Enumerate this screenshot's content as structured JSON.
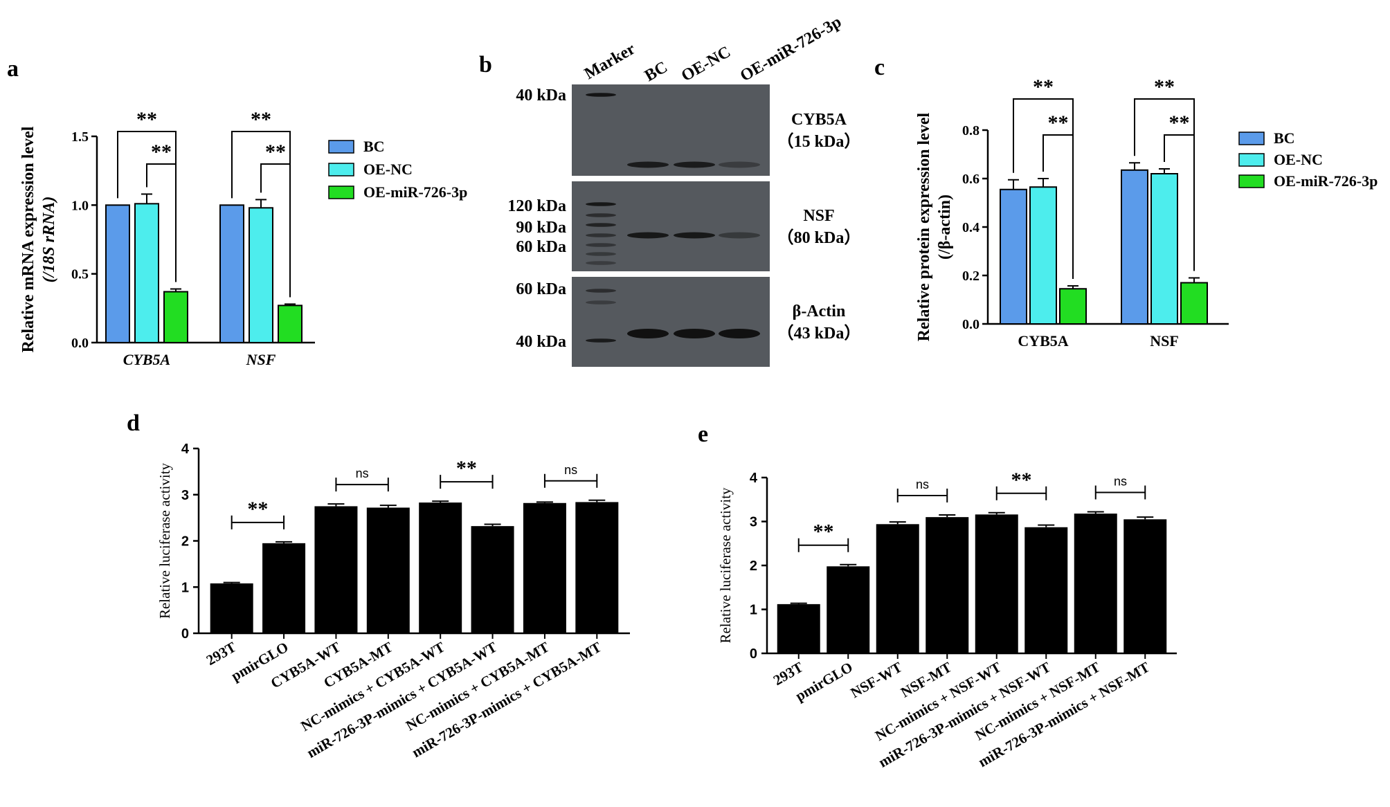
{
  "colors": {
    "bc": "#5B9BEA",
    "oenc": "#4DEDED",
    "oemir": "#22DD22",
    "black": "#000000",
    "blot_bg": "#55595e",
    "blot_band": "#111111"
  },
  "panel_letters": [
    "a",
    "b",
    "c",
    "d",
    "e"
  ],
  "legend": {
    "labels": [
      "BC",
      "OE-NC",
      "OE-miR-726-3p"
    ]
  },
  "blot": {
    "lane_labels": [
      "Marker",
      "BC",
      "OE-NC",
      "OE-miR-726-3p"
    ],
    "strips": [
      {
        "protein": "CYB5A",
        "size": "（15 kDa）",
        "markers": [
          "40 kDa"
        ]
      },
      {
        "protein": "NSF",
        "size": "（80 kDa）",
        "markers": [
          "120 kDa",
          "90 kDa",
          "60 kDa"
        ]
      },
      {
        "protein": "β-Actin",
        "size": "（43 kDa）",
        "markers": [
          "60 kDa",
          "40 kDa"
        ]
      }
    ],
    "band_intensity": [
      [
        0.85,
        0.85,
        0.4
      ],
      [
        0.9,
        0.9,
        0.45
      ],
      [
        1.0,
        1.0,
        1.0
      ]
    ]
  },
  "chart_data": [
    {
      "panel": "a",
      "type": "bar",
      "categories": [
        "CYB5A",
        "NSF"
      ],
      "series": [
        {
          "name": "BC",
          "values": [
            1.0,
            1.0
          ],
          "errors": [
            0,
            0
          ]
        },
        {
          "name": "OE-NC",
          "values": [
            1.01,
            0.98
          ],
          "errors": [
            0.07,
            0.06
          ]
        },
        {
          "name": "OE-miR-726-3p",
          "values": [
            0.37,
            0.27
          ],
          "errors": [
            0.02,
            0.01
          ]
        }
      ],
      "ylabel": "Relative mRNA expression level",
      "ylabel2": "(/18S rRNA)",
      "ylim": [
        0,
        1.5
      ],
      "yticks": [
        "0.0",
        "0.5",
        "1.0",
        "1.5"
      ],
      "significance": [
        {
          "category": 0,
          "from": 0,
          "to": 2,
          "label": "**"
        },
        {
          "category": 0,
          "from": 1,
          "to": 2,
          "label": "**"
        },
        {
          "category": 1,
          "from": 0,
          "to": 2,
          "label": "**"
        },
        {
          "category": 1,
          "from": 1,
          "to": 2,
          "label": "**"
        }
      ]
    },
    {
      "panel": "c",
      "type": "bar",
      "categories": [
        "CYB5A",
        "NSF"
      ],
      "series": [
        {
          "name": "BC",
          "values": [
            0.555,
            0.635
          ],
          "errors": [
            0.04,
            0.03
          ]
        },
        {
          "name": "OE-NC",
          "values": [
            0.565,
            0.62
          ],
          "errors": [
            0.035,
            0.02
          ]
        },
        {
          "name": "OE-miR-726-3p",
          "values": [
            0.145,
            0.17
          ],
          "errors": [
            0.012,
            0.02
          ]
        }
      ],
      "ylabel": "Relative protein expression level",
      "ylabel2": "(/β-actin)",
      "ylim": [
        0,
        0.8
      ],
      "yticks": [
        "0.0",
        "0.2",
        "0.4",
        "0.6",
        "0.8"
      ],
      "significance": [
        {
          "category": 0,
          "from": 0,
          "to": 2,
          "label": "**"
        },
        {
          "category": 0,
          "from": 1,
          "to": 2,
          "label": "**"
        },
        {
          "category": 1,
          "from": 0,
          "to": 2,
          "label": "**"
        },
        {
          "category": 1,
          "from": 1,
          "to": 2,
          "label": "**"
        }
      ]
    },
    {
      "panel": "d",
      "type": "bar",
      "categories": [
        "293T",
        "pmirGLO",
        "CYB5A-WT",
        "CYB5A-MT",
        "NC-mimics + CYB5A-WT",
        "miR-726-3P-mimics + CYB5A-WT",
        "NC-mimics + CYB5A-MT",
        "miR-726-3P-mimics + CYB5A-MT"
      ],
      "values": [
        1.08,
        1.95,
        2.75,
        2.72,
        2.83,
        2.32,
        2.82,
        2.84
      ],
      "errors": [
        0.02,
        0.03,
        0.05,
        0.05,
        0.03,
        0.04,
        0.02,
        0.04
      ],
      "ylabel": "Relative luciferase activity",
      "ylim": [
        0,
        4
      ],
      "yticks": [
        "0",
        "1",
        "2",
        "3",
        "4"
      ],
      "significance": [
        {
          "from": 0,
          "to": 1,
          "label": "**"
        },
        {
          "from": 2,
          "to": 3,
          "label": "ns"
        },
        {
          "from": 4,
          "to": 5,
          "label": "**"
        },
        {
          "from": 6,
          "to": 7,
          "label": "ns"
        }
      ]
    },
    {
      "panel": "e",
      "type": "bar",
      "categories": [
        "293T",
        "pmirGLO",
        "NSF-WT",
        "NSF-MT",
        "NC-mimics + NSF-WT",
        "miR-726-3P-mimics + NSF-WT",
        "NC-mimics + NSF-MT",
        "miR-726-3P-mimics + NSF-MT"
      ],
      "values": [
        1.12,
        1.98,
        2.94,
        3.1,
        3.16,
        2.87,
        3.18,
        3.05
      ],
      "errors": [
        0.02,
        0.04,
        0.05,
        0.05,
        0.04,
        0.05,
        0.04,
        0.05
      ],
      "ylabel": "Relative luciferase activity",
      "ylim": [
        0,
        4
      ],
      "yticks": [
        "0",
        "1",
        "2",
        "3",
        "4"
      ],
      "significance": [
        {
          "from": 0,
          "to": 1,
          "label": "**"
        },
        {
          "from": 2,
          "to": 3,
          "label": "ns"
        },
        {
          "from": 4,
          "to": 5,
          "label": "**"
        },
        {
          "from": 6,
          "to": 7,
          "label": "ns"
        }
      ]
    }
  ]
}
